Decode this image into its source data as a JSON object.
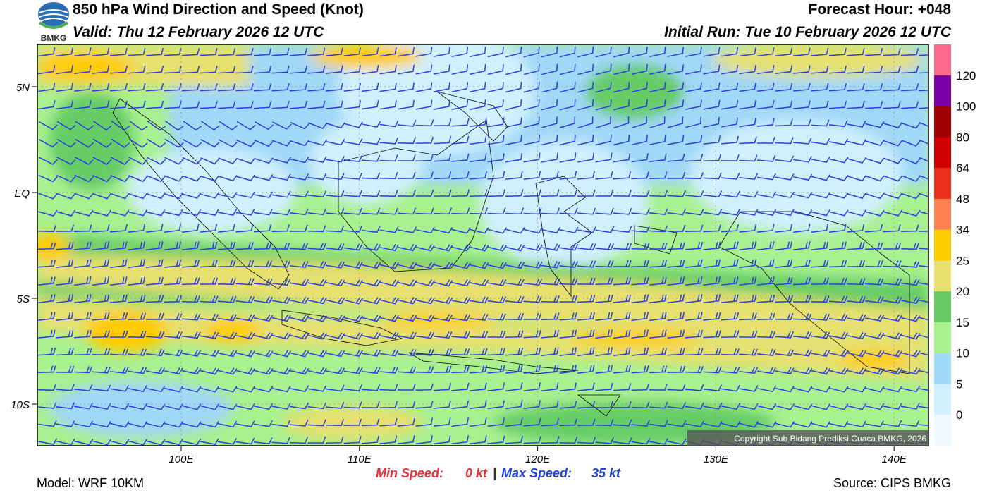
{
  "header": {
    "title": "850 hPa Wind Direction and Speed (Knot)",
    "valid": "Valid: Thu 12 February 2026 12 UTC",
    "forecast_hour": "Forecast Hour: +048",
    "initial_run": "Initial Run: Tue 10 February 2026 12 UTC",
    "logo_text": "BMKG"
  },
  "map": {
    "lat_labels": [
      "5N",
      "EQ",
      "5S",
      "10S"
    ],
    "lon_labels": [
      "100E",
      "110E",
      "120E",
      "130E",
      "140E"
    ],
    "copyright": "Copyright Sub Bidang Prediksi Cuaca BMKG, 2026"
  },
  "colorbar": {
    "labels": [
      "120",
      "100",
      "80",
      "64",
      "48",
      "34",
      "25",
      "20",
      "15",
      "10",
      "5",
      "0"
    ],
    "colors": [
      "#ff6b8a",
      "#7b00a5",
      "#a00000",
      "#d00000",
      "#e8301a",
      "#ff8050",
      "#ffcc00",
      "#e6e070",
      "#66cc66",
      "#a8f090",
      "#a0d8f8",
      "#d0f0ff",
      "#f0f8ff"
    ]
  },
  "footer": {
    "min_label": "Min Speed:",
    "min_value": "0 kt",
    "separator": "|",
    "max_label": "Max Speed:",
    "max_value": "35 kt",
    "model": "Model: WRF 10KM",
    "source": "Source: CIPS BMKG"
  }
}
